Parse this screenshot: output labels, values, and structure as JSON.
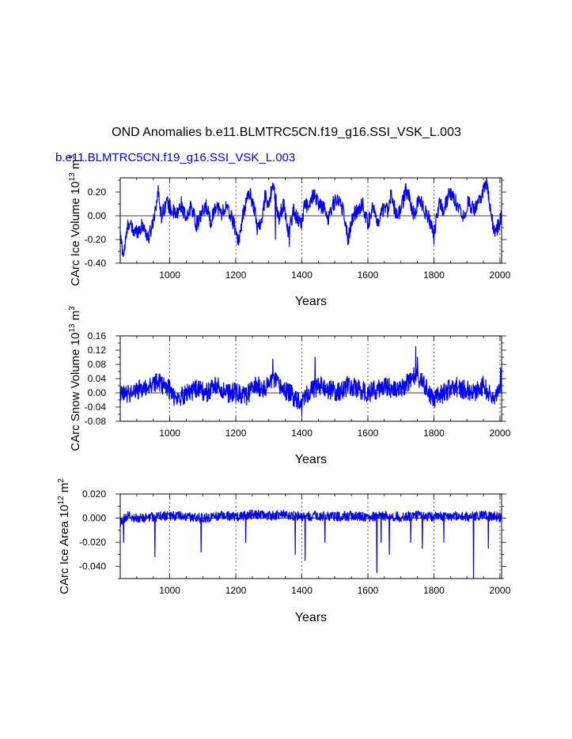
{
  "title": "OND Anomalies b.e11.BLMTRC5CN.f19_g16.SSI_VSK_L.003",
  "subtitle": "b.e11.BLMTRC5CN.f19_g16.SSI_VSK_L.003",
  "series_color": "#0000ff",
  "chart_data": [
    {
      "type": "line",
      "ylabel": "CArc Ice Volume 10",
      "ylabel_exp": "13",
      "ylabel_unit": " m",
      "ylabel_unit_exp": "3",
      "xlabel": "Years",
      "xlim": [
        850,
        2005
      ],
      "ylim": [
        -0.4,
        0.32
      ],
      "xticks": [
        1000,
        1200,
        1400,
        1600,
        1800,
        2000
      ],
      "xtick_labels": [
        "1000",
        "1200",
        "1400",
        "1600",
        "1800",
        "2000"
      ],
      "yticks": [
        -0.4,
        -0.2,
        0.0,
        0.2
      ],
      "ytick_labels": [
        "-0.40",
        "-0.20",
        "0.00",
        "0.20"
      ],
      "grid_x": "dashed",
      "anchors": [
        [
          850,
          -0.18
        ],
        [
          860,
          -0.33
        ],
        [
          875,
          -0.05
        ],
        [
          890,
          -0.14
        ],
        [
          905,
          -0.12
        ],
        [
          920,
          -0.08
        ],
        [
          935,
          -0.2
        ],
        [
          950,
          -0.04
        ],
        [
          965,
          0.2
        ],
        [
          975,
          0.0
        ],
        [
          990,
          0.12
        ],
        [
          1005,
          0.05
        ],
        [
          1020,
          0.0
        ],
        [
          1035,
          0.1
        ],
        [
          1050,
          -0.05
        ],
        [
          1065,
          0.1
        ],
        [
          1080,
          -0.08
        ],
        [
          1095,
          0.0
        ],
        [
          1110,
          0.08
        ],
        [
          1125,
          -0.05
        ],
        [
          1140,
          0.1
        ],
        [
          1155,
          0.02
        ],
        [
          1170,
          0.07
        ],
        [
          1185,
          0.0
        ],
        [
          1200,
          -0.12
        ],
        [
          1210,
          -0.2
        ],
        [
          1225,
          0.05
        ],
        [
          1240,
          0.2
        ],
        [
          1255,
          0.08
        ],
        [
          1265,
          -0.1
        ],
        [
          1280,
          -0.04
        ],
        [
          1290,
          0.2
        ],
        [
          1300,
          0.06
        ],
        [
          1310,
          0.27
        ],
        [
          1320,
          0.15
        ],
        [
          1330,
          -0.02
        ],
        [
          1345,
          0.1
        ],
        [
          1360,
          -0.15
        ],
        [
          1375,
          0.05
        ],
        [
          1385,
          -0.02
        ],
        [
          1400,
          -0.06
        ],
        [
          1410,
          0.12
        ],
        [
          1420,
          0.05
        ],
        [
          1435,
          0.18
        ],
        [
          1450,
          0.1
        ],
        [
          1465,
          0.07
        ],
        [
          1480,
          -0.02
        ],
        [
          1495,
          0.1
        ],
        [
          1510,
          0.15
        ],
        [
          1525,
          0.05
        ],
        [
          1540,
          -0.2
        ],
        [
          1555,
          0.0
        ],
        [
          1570,
          0.05
        ],
        [
          1585,
          0.1
        ],
        [
          1600,
          -0.08
        ],
        [
          1615,
          0.1
        ],
        [
          1630,
          -0.1
        ],
        [
          1645,
          0.05
        ],
        [
          1660,
          0.05
        ],
        [
          1670,
          0.2
        ],
        [
          1685,
          0.0
        ],
        [
          1700,
          0.05
        ],
        [
          1715,
          0.22
        ],
        [
          1725,
          0.15
        ],
        [
          1740,
          0.0
        ],
        [
          1755,
          0.15
        ],
        [
          1770,
          0.05
        ],
        [
          1785,
          -0.02
        ],
        [
          1800,
          -0.15
        ],
        [
          1815,
          0.1
        ],
        [
          1830,
          0.05
        ],
        [
          1845,
          0.18
        ],
        [
          1860,
          0.15
        ],
        [
          1875,
          0.08
        ],
        [
          1890,
          0.0
        ],
        [
          1905,
          0.12
        ],
        [
          1920,
          0.05
        ],
        [
          1935,
          0.1
        ],
        [
          1950,
          0.22
        ],
        [
          1960,
          0.28
        ],
        [
          1970,
          0.05
        ],
        [
          1985,
          -0.15
        ],
        [
          1995,
          -0.08
        ],
        [
          2005,
          0.0
        ]
      ],
      "noise": 0.065,
      "spikes": [
        [
          1205,
          -0.24
        ],
        [
          1320,
          -0.2
        ],
        [
          1362,
          -0.26
        ],
        [
          1540,
          -0.24
        ],
        [
          1800,
          -0.24
        ]
      ]
    },
    {
      "type": "line",
      "ylabel": "CArc Snow Volume 10",
      "ylabel_exp": "13",
      "ylabel_unit": " m",
      "ylabel_unit_exp": "3",
      "xlabel": "Years",
      "xlim": [
        850,
        2005
      ],
      "ylim": [
        -0.08,
        0.16
      ],
      "xticks": [
        1000,
        1200,
        1400,
        1600,
        1800,
        2000
      ],
      "xtick_labels": [
        "1000",
        "1200",
        "1400",
        "1600",
        "1800",
        "2000"
      ],
      "yticks": [
        -0.08,
        -0.04,
        0.0,
        0.04,
        0.08,
        0.12,
        0.16
      ],
      "ytick_labels": [
        "-0.08",
        "-0.04",
        "0.00",
        "0.04",
        "0.08",
        "0.12",
        "0.16"
      ],
      "grid_x": "dashed",
      "anchors": [
        [
          850,
          -0.01
        ],
        [
          880,
          0.0
        ],
        [
          910,
          0.01
        ],
        [
          940,
          0.02
        ],
        [
          960,
          0.03
        ],
        [
          990,
          0.02
        ],
        [
          1020,
          -0.02
        ],
        [
          1050,
          0.0
        ],
        [
          1080,
          0.01
        ],
        [
          1110,
          0.0
        ],
        [
          1140,
          0.02
        ],
        [
          1170,
          0.0
        ],
        [
          1200,
          0.0
        ],
        [
          1230,
          -0.01
        ],
        [
          1260,
          0.02
        ],
        [
          1290,
          0.01
        ],
        [
          1310,
          0.04
        ],
        [
          1330,
          0.02
        ],
        [
          1360,
          0.0
        ],
        [
          1390,
          -0.02
        ],
        [
          1420,
          0.0
        ],
        [
          1450,
          0.02
        ],
        [
          1480,
          0.01
        ],
        [
          1510,
          0.0
        ],
        [
          1540,
          0.02
        ],
        [
          1570,
          0.01
        ],
        [
          1600,
          0.0
        ],
        [
          1630,
          0.01
        ],
        [
          1660,
          0.02
        ],
        [
          1690,
          0.0
        ],
        [
          1720,
          0.03
        ],
        [
          1745,
          0.05
        ],
        [
          1770,
          0.02
        ],
        [
          1800,
          -0.02
        ],
        [
          1830,
          0.0
        ],
        [
          1860,
          0.02
        ],
        [
          1890,
          0.01
        ],
        [
          1920,
          0.0
        ],
        [
          1950,
          0.02
        ],
        [
          1980,
          -0.02
        ],
        [
          2005,
          0.02
        ]
      ],
      "noise": 0.028,
      "spikes": [
        [
          1312,
          0.095
        ],
        [
          1440,
          0.1
        ],
        [
          1745,
          0.13
        ],
        [
          1750,
          0.1
        ],
        [
          1400,
          -0.065
        ],
        [
          2002,
          0.07
        ]
      ]
    },
    {
      "type": "line",
      "ylabel": "CArc Ice Area 10",
      "ylabel_exp": "12",
      "ylabel_unit": " m",
      "ylabel_unit_exp": "2",
      "xlabel": "Years",
      "xlim": [
        850,
        2005
      ],
      "ylim": [
        -0.05,
        0.02
      ],
      "xticks": [
        1000,
        1200,
        1400,
        1600,
        1800,
        2000
      ],
      "xtick_labels": [
        "1000",
        "1200",
        "1400",
        "1600",
        "1800",
        "2000"
      ],
      "yticks": [
        -0.04,
        -0.02,
        0.0,
        0.02
      ],
      "ytick_labels": [
        "-0.040",
        "-0.020",
        "0.000",
        "0.020"
      ],
      "grid_x": "dashed",
      "anchors": [
        [
          850,
          -0.005
        ],
        [
          870,
          0.002
        ],
        [
          900,
          0.0
        ],
        [
          950,
          0.001
        ],
        [
          1000,
          0.002
        ],
        [
          1050,
          0.001
        ],
        [
          1100,
          0.0
        ],
        [
          1150,
          0.002
        ],
        [
          1200,
          0.001
        ],
        [
          1250,
          0.003
        ],
        [
          1300,
          0.002
        ],
        [
          1350,
          0.003
        ],
        [
          1400,
          0.001
        ],
        [
          1450,
          0.002
        ],
        [
          1500,
          0.001
        ],
        [
          1550,
          0.002
        ],
        [
          1600,
          0.001
        ],
        [
          1650,
          0.002
        ],
        [
          1700,
          0.001
        ],
        [
          1750,
          0.002
        ],
        [
          1800,
          0.001
        ],
        [
          1850,
          0.002
        ],
        [
          1900,
          0.001
        ],
        [
          1950,
          0.002
        ],
        [
          2005,
          0.001
        ]
      ],
      "noise": 0.004,
      "spikes": [
        [
          860,
          -0.02
        ],
        [
          955,
          -0.032
        ],
        [
          1095,
          -0.028
        ],
        [
          1230,
          -0.02
        ],
        [
          1380,
          -0.03
        ],
        [
          1410,
          -0.035
        ],
        [
          1470,
          -0.02
        ],
        [
          1627,
          -0.045
        ],
        [
          1640,
          -0.02
        ],
        [
          1665,
          -0.03
        ],
        [
          1730,
          -0.02
        ],
        [
          1765,
          -0.025
        ],
        [
          1830,
          -0.02
        ],
        [
          1920,
          -0.05
        ],
        [
          1965,
          -0.025
        ]
      ]
    }
  ]
}
